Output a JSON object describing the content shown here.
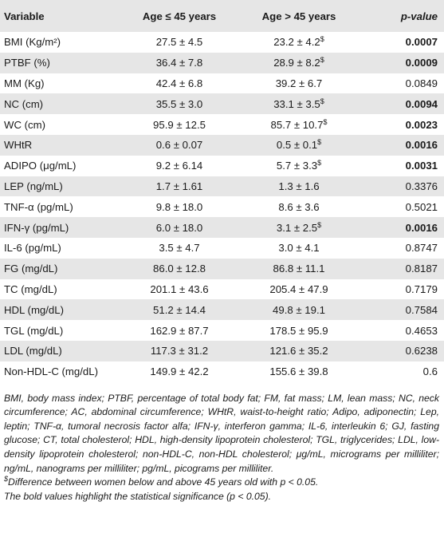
{
  "table": {
    "headers": [
      "Variable",
      "Age ≤ 45 years",
      "Age > 45 years",
      "p-value"
    ],
    "rows": [
      {
        "variable": "BMI (Kg/m²)",
        "young": "27.5 ± 4.5",
        "old": "23.2 ± 4.2",
        "mark": "$",
        "p": "0.0007",
        "significant": true
      },
      {
        "variable": "PTBF (%)",
        "young": "36.4 ± 7.8",
        "old": "28.9 ± 8.2",
        "mark": "$",
        "p": "0.0009",
        "significant": true
      },
      {
        "variable": "MM (Kg)",
        "young": "42.4 ± 6.8",
        "old": "39.2 ± 6.7",
        "mark": "",
        "p": "0.0849",
        "significant": false
      },
      {
        "variable": "NC (cm)",
        "young": "35.5 ± 3.0",
        "old": "33.1 ± 3.5",
        "mark": "$",
        "p": "0.0094",
        "significant": true
      },
      {
        "variable": "WC (cm)",
        "young": "95.9 ± 12.5",
        "old": "85.7 ± 10.7",
        "mark": "$",
        "p": "0.0023",
        "significant": true
      },
      {
        "variable": "WHtR",
        "young": "0.6 ± 0.07",
        "old": "0.5 ± 0.1",
        "mark": "$",
        "p": "0.0016",
        "significant": true
      },
      {
        "variable": "ADIPO (μg/mL)",
        "young": "9.2 ± 6.14",
        "old": "5.7 ± 3.3",
        "mark": "$",
        "p": "0.0031",
        "significant": true
      },
      {
        "variable": "LEP (ng/mL)",
        "young": "1.7 ± 1.61",
        "old": "1.3 ± 1.6",
        "mark": "",
        "p": "0.3376",
        "significant": false
      },
      {
        "variable": "TNF-α (pg/mL)",
        "young": "9.8 ± 18.0",
        "old": "8.6 ± 3.6",
        "mark": "",
        "p": "0.5021",
        "significant": false
      },
      {
        "variable": "IFN-γ (pg/mL)",
        "young": "6.0 ± 18.0",
        "old": "3.1 ± 2.5",
        "mark": "$",
        "p": "0.0016",
        "significant": true
      },
      {
        "variable": "IL-6 (pg/mL)",
        "young": "3.5 ± 4.7",
        "old": "3.0 ± 4.1",
        "mark": "",
        "p": "0.8747",
        "significant": false
      },
      {
        "variable": "FG (mg/dL)",
        "young": "86.0 ± 12.8",
        "old": "86.8 ± 11.1",
        "mark": "",
        "p": "0.8187",
        "significant": false
      },
      {
        "variable": "TC (mg/dL)",
        "young": "201.1 ± 43.6",
        "old": "205.4 ± 47.9",
        "mark": "",
        "p": "0.7179",
        "significant": false
      },
      {
        "variable": "HDL (mg/dL)",
        "young": "51.2 ± 14.4",
        "old": "49.8 ± 19.1",
        "mark": "",
        "p": "0.7584",
        "significant": false
      },
      {
        "variable": "TGL (mg/dL)",
        "young": "162.9 ± 87.7",
        "old": "178.5 ± 95.9",
        "mark": "",
        "p": "0.4653",
        "significant": false
      },
      {
        "variable": "LDL (mg/dL)",
        "young": "117.3 ± 31.2",
        "old": "121.6 ± 35.2",
        "mark": "",
        "p": "0.6238",
        "significant": false
      },
      {
        "variable": "Non-HDL-C (mg/dL)",
        "young": "149.9 ± 42.2",
        "old": "155.6 ± 39.8",
        "mark": "",
        "p": "0.6",
        "significant": false
      }
    ]
  },
  "notes": {
    "abbreviations": "BMI, body mass index; PTBF, percentage of total body fat; FM, fat mass; LM, lean mass; NC, neck circumference; AC, abdominal circumference; WHtR, waist-to-height ratio; Adipo, adiponectin; Lep, leptin; TNF-α, tumoral necrosis factor alfa; IFN-γ, interferon gamma; IL-6, interleukin 6; GJ, fasting glucose; CT, total cholesterol; HDL, high-density lipoprotein cholesterol; TGL, triglycerides; LDL, low-density lipoprotein cholesterol; non-HDL-C, non-HDL cholesterol; μg/mL, micrograms per milliliter; ng/mL, nanograms per milliliter; pg/mL, picograms per milliliter.",
    "dollar_mark": "$",
    "dollar_note": "Difference between women below and above 45 years old with p < 0.05.",
    "bold_note": "The bold values highlight the statistical significance (p < 0.05)."
  }
}
